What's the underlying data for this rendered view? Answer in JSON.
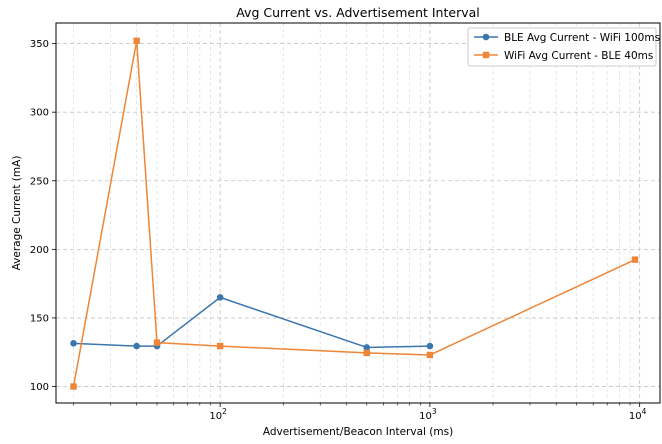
{
  "chart_data": {
    "type": "line",
    "title": "Avg Current vs. Advertisement Interval",
    "xlabel": "Advertisement/Beacon Interval (ms)",
    "ylabel": "Average Current (mA)",
    "x_scale": "log",
    "xlim": [
      16.5,
      12500
    ],
    "ylim": [
      88,
      365
    ],
    "x_ticks": [
      {
        "value": 100,
        "base": "10",
        "exp": "2"
      },
      {
        "value": 1000,
        "base": "10",
        "exp": "3"
      },
      {
        "value": 10000,
        "base": "10",
        "exp": "4"
      }
    ],
    "y_ticks": [
      100,
      150,
      200,
      250,
      300,
      350
    ],
    "grid": true,
    "legend_position": "top-right",
    "series": [
      {
        "name": "BLE Avg Current - WiFi 100ms",
        "color": "#3b76af",
        "marker": "circle",
        "x": [
          20,
          40,
          50,
          100,
          500,
          1000
        ],
        "y": [
          131.5,
          129.5,
          129.5,
          165,
          128.5,
          129.5
        ]
      },
      {
        "name": "WiFi Avg Current - BLE 40ms",
        "color": "#ef8536",
        "marker": "square",
        "x": [
          20,
          40,
          50,
          100,
          500,
          1000,
          9500
        ],
        "y": [
          100,
          352,
          132,
          129.5,
          124.5,
          123,
          192.5
        ]
      }
    ]
  }
}
